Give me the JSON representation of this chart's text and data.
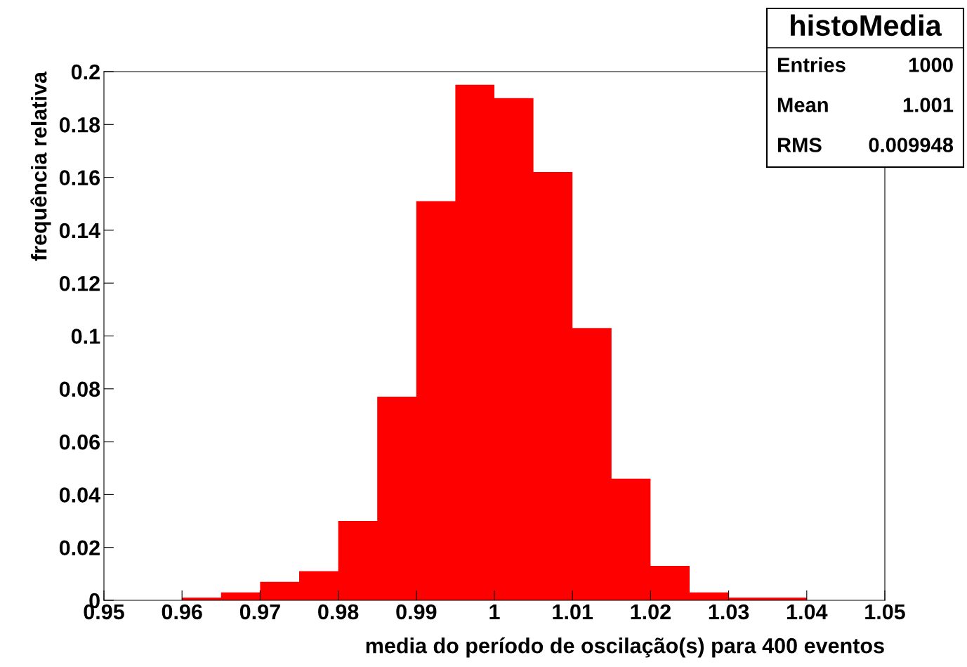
{
  "chart_data": {
    "type": "histogram",
    "title": "histoMedia",
    "xlabel": "media do período de oscilação(s) para 400 eventos",
    "ylabel": "frequência relativa",
    "bins": [
      0.96,
      0.965,
      0.97,
      0.975,
      0.98,
      0.985,
      0.99,
      0.995,
      1.0,
      1.005,
      1.01,
      1.015,
      1.02,
      1.025,
      1.03,
      1.035,
      1.04
    ],
    "values": [
      0.001,
      0.003,
      0.007,
      0.011,
      0.03,
      0.077,
      0.151,
      0.195,
      0.19,
      0.162,
      0.103,
      0.046,
      0.013,
      0.003,
      0.001,
      0.001
    ],
    "color": "#ff0000",
    "xlim": [
      0.95,
      1.05
    ],
    "xticks": [
      0.95,
      0.96,
      0.97,
      0.98,
      0.99,
      1,
      1.01,
      1.02,
      1.03,
      1.04,
      1.05
    ],
    "ylim": [
      0,
      0.2
    ],
    "yticks": [
      0,
      0.02,
      0.04,
      0.06,
      0.08,
      0.1,
      0.12,
      0.14,
      0.16,
      0.18,
      0.2
    ],
    "annotations": [
      "Entries",
      "1000",
      "Mean",
      "1.001",
      "RMS",
      "0.009948"
    ],
    "grid": false
  }
}
